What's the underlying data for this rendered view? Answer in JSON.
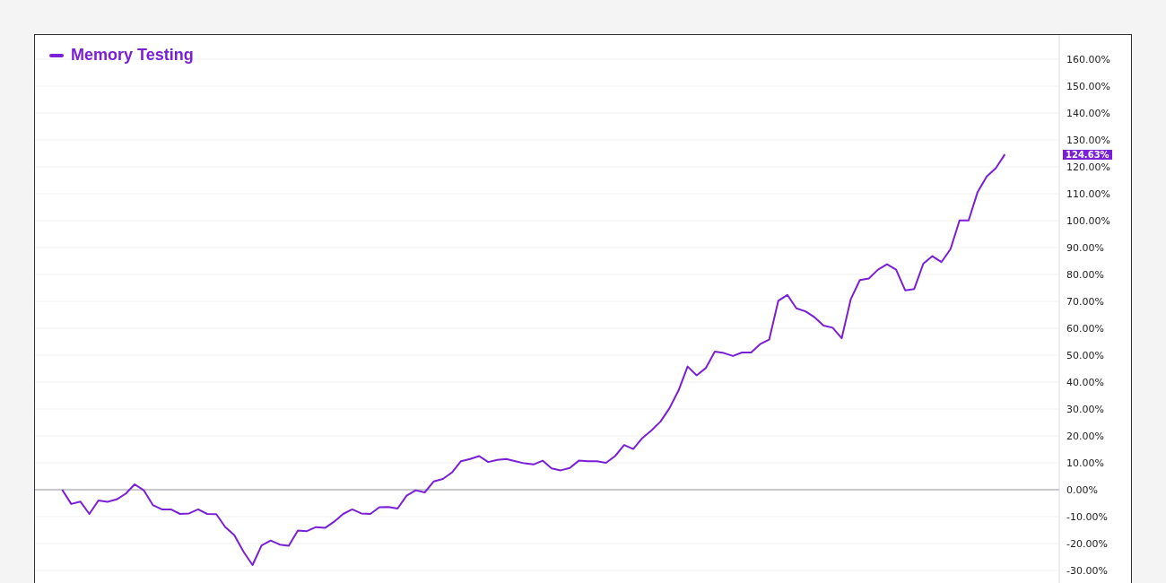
{
  "chart_data": {
    "type": "line",
    "categories": [
      null,
      null,
      null,
      null,
      null,
      null,
      null,
      null,
      null,
      null,
      null,
      null,
      null,
      null,
      null,
      null,
      null,
      null,
      null,
      null,
      null,
      null,
      null,
      null,
      null,
      null,
      null,
      null,
      null,
      null,
      null,
      null,
      null,
      null,
      null,
      null,
      null,
      null,
      null,
      null,
      null,
      null,
      null,
      null,
      null,
      null,
      null,
      null,
      null,
      null,
      null,
      null,
      null,
      null,
      null,
      null,
      null,
      null,
      null,
      null,
      null,
      null,
      null,
      null,
      null,
      null,
      null,
      null,
      null,
      null,
      null,
      null,
      null,
      null,
      null,
      null,
      null,
      null,
      null,
      null,
      null,
      null,
      null,
      null,
      null,
      null,
      null,
      null,
      null,
      null,
      null,
      null,
      null,
      null,
      null,
      null,
      null,
      null,
      null,
      null,
      null,
      null,
      null,
      null,
      null,
      null,
      null,
      null,
      null,
      null,
      null,
      null,
      null,
      null
    ],
    "series": [
      {
        "name": "Memory Testing",
        "color": "#7a1fd6",
        "values": [
          null,
          null,
          null,
          0,
          -5.3,
          -4.4,
          -9,
          -4,
          -4.5,
          -3.6,
          -1.5,
          2,
          -0.2,
          -5.7,
          -7.3,
          -7.3,
          -9,
          -8.8,
          -7.3,
          -9,
          -9.1,
          -13.9,
          -16.9,
          -23,
          -28,
          -20.7,
          -18.9,
          -20.4,
          -20.8,
          -15.2,
          -15.4,
          -13.9,
          -14.2,
          -11.9,
          -9,
          -7.3,
          -8.8,
          -9,
          -6.5,
          -6.4,
          -7,
          -2.2,
          -0.2,
          -1,
          3.1,
          4,
          6.4,
          10.6,
          11.4,
          12.5,
          10.3,
          11.1,
          11.4,
          10.6,
          9.8,
          9.4,
          10.8,
          7.9,
          7.2,
          8.1,
          10.8,
          10.6,
          10.6,
          10,
          12.5,
          16.6,
          15.1,
          19.2,
          22,
          25.3,
          30.3,
          36.9,
          45.8,
          42.5,
          45.2,
          51.3,
          50.8,
          49.7,
          51,
          51,
          54.1,
          55.8,
          70.2,
          72.4,
          67.4,
          66.3,
          64.1,
          61,
          60.2,
          56.3,
          70.8,
          77.9,
          78.5,
          81.8,
          83.8,
          81.8,
          74.1,
          74.6,
          84,
          86.8,
          84.6,
          89.4,
          100.1,
          100.1,
          110.7,
          116.4,
          119.5,
          124.63,
          null,
          null,
          null,
          null,
          null,
          null
        ]
      }
    ],
    "ylim": [
      -35,
      169
    ],
    "yticks": [
      {
        "value": -30,
        "label": "-30.00%"
      },
      {
        "value": -20,
        "label": "-20.00%"
      },
      {
        "value": -10,
        "label": "-10.00%"
      },
      {
        "value": 0,
        "label": "0.00%"
      },
      {
        "value": 10,
        "label": "10.00%"
      },
      {
        "value": 20,
        "label": "20.00%"
      },
      {
        "value": 30,
        "label": "30.00%"
      },
      {
        "value": 40,
        "label": "40.00%"
      },
      {
        "value": 50,
        "label": "50.00%"
      },
      {
        "value": 60,
        "label": "60.00%"
      },
      {
        "value": 70,
        "label": "70.00%"
      },
      {
        "value": 80,
        "label": "80.00%"
      },
      {
        "value": 90,
        "label": "90.00%"
      },
      {
        "value": 100,
        "label": "100.00%"
      },
      {
        "value": 110,
        "label": "110.00%"
      },
      {
        "value": 120,
        "label": "120.00%"
      },
      {
        "value": 130,
        "label": "130.00%"
      },
      {
        "value": 140,
        "label": "140.00%"
      },
      {
        "value": 150,
        "label": "150.00%"
      },
      {
        "value": 160,
        "label": "160.00%"
      }
    ],
    "tick_labels": "y",
    "grid": "y",
    "legend": "top left",
    "marker": "none",
    "line_style": "solid",
    "ref_lines": [
      {
        "axis": "y",
        "value": 0,
        "color": "#b8b8c0"
      }
    ],
    "annotations": [
      "124.63%"
    ]
  }
}
